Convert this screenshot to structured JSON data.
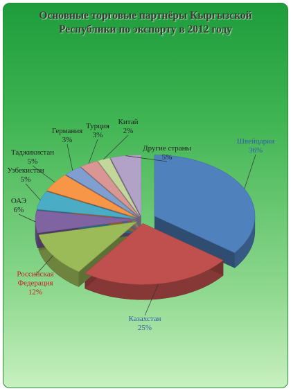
{
  "chart_data": {
    "type": "pie",
    "title": "Основные торговые партнёры Кыргызской Республики по экспорту в 2012 году",
    "categories": [
      "Швейцария",
      "Казахстан",
      "Российская Федерация",
      "ОАЭ",
      "Узбекистан",
      "Таджикистан",
      "Германия",
      "Турция",
      "Китай",
      "Другие страны"
    ],
    "values": [
      36,
      25,
      12,
      6,
      5,
      5,
      3,
      3,
      2,
      5
    ],
    "value_labels": [
      "36%",
      "25%",
      "12%",
      "6%",
      "5%",
      "5%",
      "3%",
      "3%",
      "2%",
      "5%"
    ],
    "colors": [
      "#4f81bd",
      "#c0504d",
      "#9bbb59",
      "#8064a2",
      "#4bacc6",
      "#f79646",
      "#7f9fd0",
      "#d99694",
      "#c3d69b",
      "#b3a2c7"
    ],
    "label_colors": [
      "#2f5fa8",
      "#2f5fa8",
      "#c0201d",
      "#222",
      "#222",
      "#222",
      "#222",
      "#222",
      "#222",
      "#222"
    ]
  }
}
